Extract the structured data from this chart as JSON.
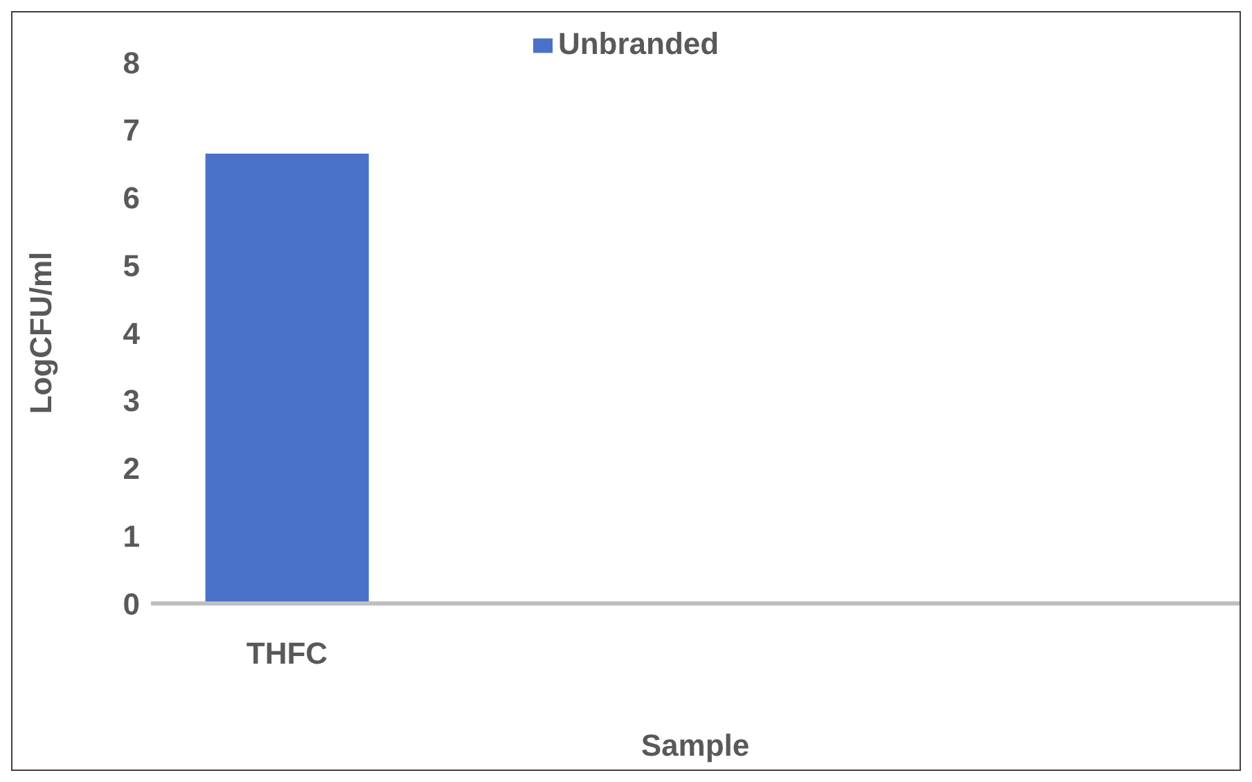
{
  "chart_data": {
    "type": "bar",
    "xlabel": "Sample",
    "ylabel": "LogCFU/ml",
    "categories": [
      "THFC",
      null,
      null,
      null
    ],
    "series": [
      {
        "name": "Unbranded",
        "color": "#4a72c8",
        "values": [
          6.65,
          null,
          null,
          null
        ]
      }
    ],
    "ylim": [
      0,
      8
    ],
    "yticks": [
      0,
      1,
      2,
      3,
      4,
      5,
      6,
      7,
      8
    ],
    "grid": false,
    "legend": "top"
  }
}
